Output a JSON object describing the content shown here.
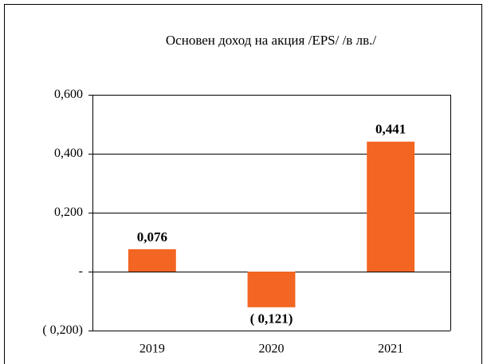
{
  "chart_data": {
    "type": "bar",
    "title": "Основен доход на акция /EPS/ /в лв./",
    "categories": [
      "2019",
      "2020",
      "2021"
    ],
    "values": [
      0.076,
      -0.121,
      0.441
    ],
    "value_labels": [
      "0,076",
      "( 0,121)",
      "0,441"
    ],
    "color": "#f26522",
    "ylim": [
      -0.2,
      0.6
    ],
    "yticks": [
      {
        "value": -0.2,
        "label": "( 0,200)"
      },
      {
        "value": 0,
        "label": "-"
      },
      {
        "value": 0.2,
        "label": "0,200"
      },
      {
        "value": 0.4,
        "label": "0,400"
      },
      {
        "value": 0.6,
        "label": "0,600"
      }
    ],
    "grid": true
  }
}
